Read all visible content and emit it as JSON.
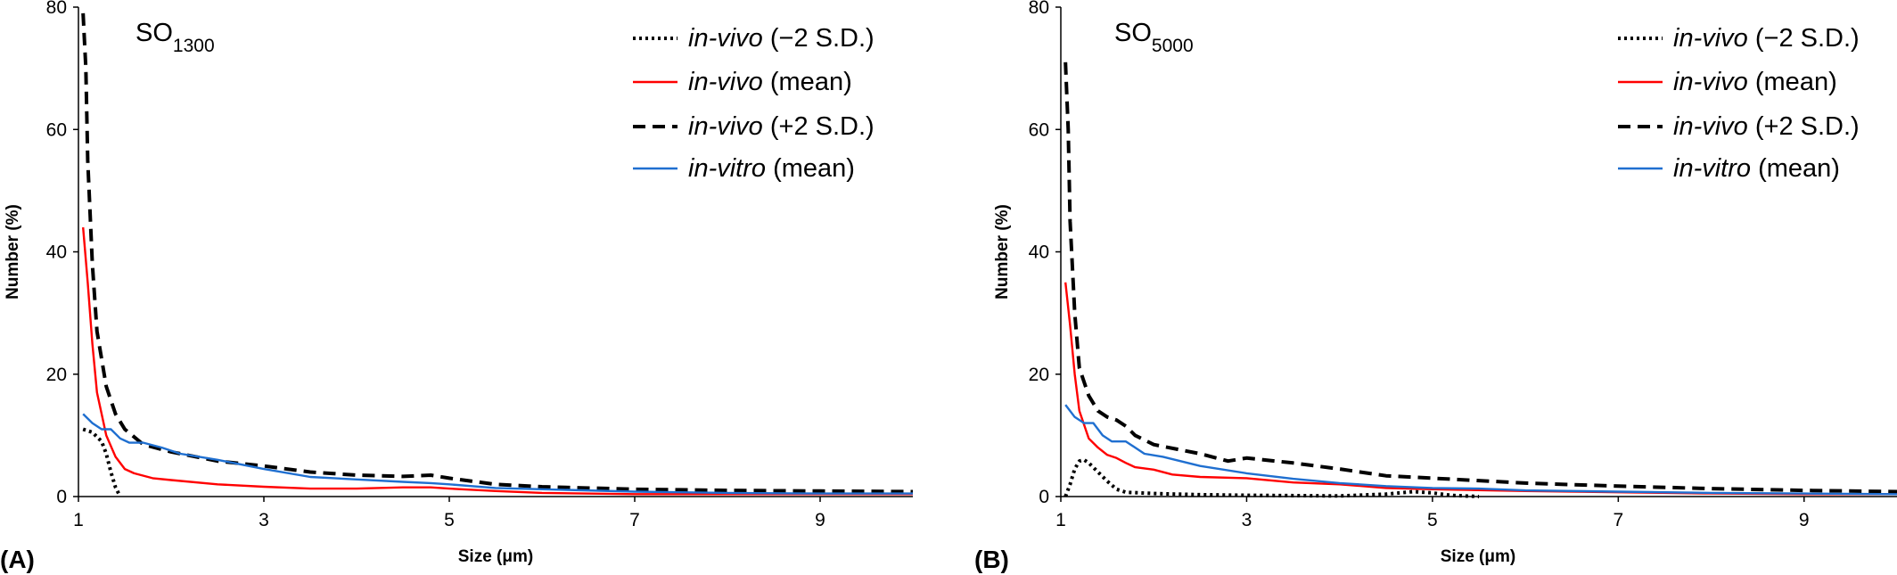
{
  "chart_data": [
    {
      "type": "line",
      "panel_label": "(A)",
      "title_main": "SO",
      "title_sub": "1300",
      "xlabel": "Size (μm)",
      "ylabel": "Number (%)",
      "xlim": [
        1,
        10
      ],
      "ylim": [
        0,
        80
      ],
      "x_ticks": [
        "1",
        "3",
        "5",
        "7",
        "9"
      ],
      "y_ticks": [
        "0",
        "20",
        "40",
        "60",
        "80"
      ],
      "legend_position": "top-right",
      "series": [
        {
          "name_italic": "in-vivo",
          "name_rest": " (−2 S.D.)",
          "color": "#000000",
          "style": "dotted",
          "x": [
            1.05,
            1.15,
            1.25,
            1.3,
            1.35,
            1.4,
            1.45
          ],
          "y": [
            11,
            10.5,
            9,
            7,
            4,
            1.5,
            0
          ]
        },
        {
          "name_italic": "in-vivo",
          "name_rest": " (mean)",
          "color": "#ff0000",
          "style": "solid",
          "x": [
            1.05,
            1.1,
            1.15,
            1.2,
            1.3,
            1.4,
            1.5,
            1.6,
            1.8,
            2,
            2.5,
            3,
            3.5,
            4,
            4.5,
            4.8,
            5,
            5.5,
            6,
            7,
            8,
            9,
            10
          ],
          "y": [
            44,
            35,
            25,
            17,
            10,
            6.5,
            4.5,
            3.8,
            3,
            2.7,
            2,
            1.6,
            1.3,
            1.3,
            1.5,
            1.5,
            1.3,
            0.9,
            0.6,
            0.4,
            0.4,
            0.4,
            0.4
          ]
        },
        {
          "name_italic": "in-vivo",
          "name_rest": " (+2 S.D.)",
          "color": "#000000",
          "style": "dashed",
          "x": [
            1.05,
            1.08,
            1.1,
            1.15,
            1.2,
            1.3,
            1.4,
            1.5,
            1.7,
            2,
            2.5,
            3,
            3.5,
            4,
            4.5,
            4.8,
            5,
            5.5,
            6,
            7,
            8,
            9,
            10
          ],
          "y": [
            79,
            70,
            55,
            38,
            27,
            18,
            13.5,
            11,
            8.5,
            7.3,
            5.8,
            5,
            4,
            3.5,
            3.3,
            3.5,
            3,
            2,
            1.6,
            1.2,
            1,
            0.9,
            0.8
          ]
        },
        {
          "name_italic": "in-vitro",
          "name_rest": " (mean)",
          "color": "#1f6fd0",
          "style": "solid",
          "x": [
            1.05,
            1.15,
            1.25,
            1.35,
            1.45,
            1.55,
            1.7,
            1.9,
            2.1,
            2.5,
            3,
            3.5,
            4,
            4.5,
            4.8,
            5,
            5.5,
            6,
            7,
            8,
            9,
            10
          ],
          "y": [
            13.5,
            12,
            11,
            11,
            9.5,
            8.8,
            8.8,
            8,
            7,
            6,
            4.5,
            3.2,
            2.8,
            2.4,
            2.2,
            2,
            1.4,
            1.2,
            0.8,
            0.6,
            0.5,
            0.5
          ]
        }
      ]
    },
    {
      "type": "line",
      "panel_label": "(B)",
      "title_main": "SO",
      "title_sub": "5000",
      "xlabel": "Size (μm)",
      "ylabel": "Number (%)",
      "xlim": [
        1,
        10
      ],
      "ylim": [
        0,
        80
      ],
      "x_ticks": [
        "1",
        "3",
        "5",
        "7",
        "9"
      ],
      "y_ticks": [
        "0",
        "20",
        "40",
        "60",
        "80"
      ],
      "legend_position": "top-right",
      "series": [
        {
          "name_italic": "in-vivo",
          "name_rest": " (−2 S.D.)",
          "color": "#000000",
          "style": "dotted",
          "x": [
            1.05,
            1.1,
            1.15,
            1.2,
            1.25,
            1.3,
            1.4,
            1.5,
            1.6,
            1.7,
            2,
            2.5,
            3,
            4,
            4.5,
            4.8,
            5,
            5.2,
            5.5
          ],
          "y": [
            0,
            2,
            4.5,
            5.8,
            6,
            5.5,
            4,
            2.5,
            1.2,
            0.7,
            0.5,
            0.3,
            0.2,
            0.1,
            0.4,
            0.8,
            0.6,
            0.2,
            0
          ]
        },
        {
          "name_italic": "in-vivo",
          "name_rest": " (mean)",
          "color": "#ff0000",
          "style": "solid",
          "x": [
            1.05,
            1.1,
            1.15,
            1.2,
            1.3,
            1.4,
            1.5,
            1.6,
            1.7,
            1.8,
            2,
            2.2,
            2.5,
            3,
            3.5,
            4,
            4.5,
            5,
            6,
            7,
            8,
            9,
            10
          ],
          "y": [
            35,
            28,
            20,
            14,
            9.5,
            8,
            6.8,
            6.3,
            5.5,
            4.8,
            4.4,
            3.6,
            3.2,
            3,
            2.3,
            2,
            1.4,
            1.2,
            0.9,
            0.7,
            0.5,
            0.4,
            0.4
          ]
        },
        {
          "name_italic": "in-vivo",
          "name_rest": " (+2 S.D.)",
          "color": "#000000",
          "style": "dashed",
          "x": [
            1.05,
            1.08,
            1.1,
            1.15,
            1.2,
            1.3,
            1.4,
            1.5,
            1.6,
            1.7,
            1.8,
            2,
            2.5,
            2.8,
            3,
            3.5,
            4,
            4.5,
            5,
            6,
            7,
            8,
            9,
            10
          ],
          "y": [
            71,
            60,
            45,
            30,
            21,
            16.5,
            14,
            13,
            12.5,
            11.5,
            10,
            8.5,
            7,
            5.8,
            6.3,
            5.5,
            4.5,
            3.4,
            3,
            2.2,
            1.7,
            1.3,
            1,
            0.8
          ]
        },
        {
          "name_italic": "in-vitro",
          "name_rest": " (mean)",
          "color": "#1f6fd0",
          "style": "solid",
          "x": [
            1.05,
            1.15,
            1.25,
            1.35,
            1.45,
            1.55,
            1.7,
            1.9,
            2.1,
            2.5,
            3,
            3.5,
            4,
            4.5,
            5,
            5.5,
            6,
            7,
            8,
            9,
            10
          ],
          "y": [
            15,
            13,
            12,
            12,
            10,
            9,
            9,
            7,
            6.5,
            5,
            3.8,
            2.9,
            2.2,
            1.7,
            1.4,
            1.3,
            1,
            0.8,
            0.6,
            0.5,
            0.4
          ]
        }
      ]
    }
  ]
}
